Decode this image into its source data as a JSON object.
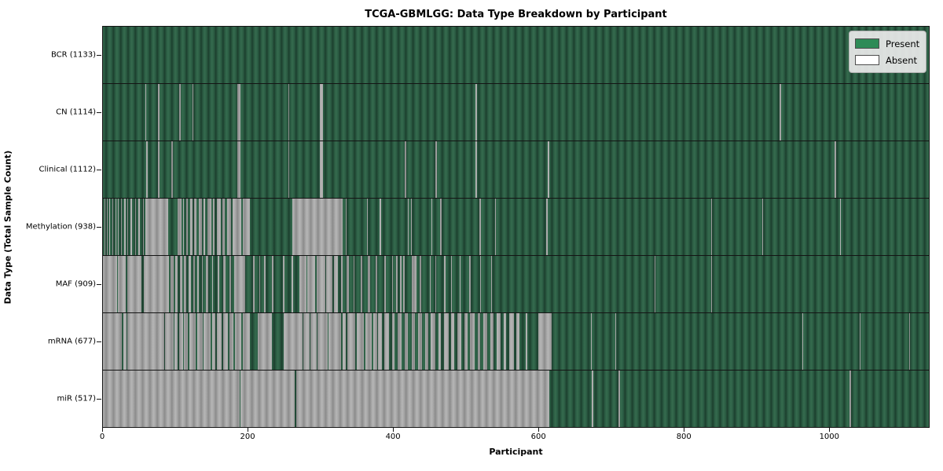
{
  "chart_data": {
    "type": "heatmap",
    "title": "TCGA-GBMLGG: Data Type Breakdown by Participant",
    "xlabel": "Participant",
    "ylabel": "Data Type (Total Sample Count)",
    "legend": [
      "Present",
      "Absent"
    ],
    "legend_position": "upper right",
    "colors": {
      "present": "#2e8b57",
      "absent": "#ffffff"
    },
    "n_participants": 1133,
    "x_ticks": [
      0,
      200,
      400,
      600,
      800,
      1000
    ],
    "x_axis_max": 1138,
    "rows": [
      {
        "data_type": "BCR",
        "sample_count": 1133,
        "label": "BCR (1133)",
        "absent_segments": []
      },
      {
        "data_type": "CN",
        "sample_count": 1114,
        "label": "CN (1114)",
        "absent_segments": [
          [
            58,
            60
          ],
          [
            76,
            78
          ],
          [
            105,
            107
          ],
          [
            123,
            125
          ],
          [
            185,
            189
          ],
          [
            255,
            257
          ],
          [
            299,
            303
          ],
          [
            513,
            515
          ],
          [
            932,
            934
          ]
        ]
      },
      {
        "data_type": "Clinical",
        "sample_count": 1112,
        "label": "Clinical (1112)",
        "absent_segments": [
          [
            60,
            62
          ],
          [
            76,
            78
          ],
          [
            94,
            96
          ],
          [
            185,
            189
          ],
          [
            255,
            257
          ],
          [
            299,
            303
          ],
          [
            416,
            418
          ],
          [
            458,
            460
          ],
          [
            513,
            515
          ],
          [
            613,
            615
          ],
          [
            1008,
            1010
          ]
        ]
      },
      {
        "data_type": "Methylation",
        "sample_count": 938,
        "label": "Methylation (938)",
        "absent_segments": [
          [
            2,
            3
          ],
          [
            5,
            6
          ],
          [
            9,
            10
          ],
          [
            13,
            14
          ],
          [
            17,
            18
          ],
          [
            21,
            22
          ],
          [
            25,
            26
          ],
          [
            29,
            31
          ],
          [
            34,
            35
          ],
          [
            38,
            40
          ],
          [
            44,
            45
          ],
          [
            49,
            51
          ],
          [
            55,
            56
          ],
          [
            59,
            90
          ],
          [
            103,
            108
          ],
          [
            110,
            112
          ],
          [
            115,
            117
          ],
          [
            120,
            123
          ],
          [
            126,
            129
          ],
          [
            132,
            136
          ],
          [
            139,
            141
          ],
          [
            144,
            149
          ],
          [
            152,
            154
          ],
          [
            157,
            162
          ],
          [
            165,
            168
          ],
          [
            171,
            176
          ],
          [
            179,
            191
          ],
          [
            193,
            202
          ],
          [
            261,
            330
          ],
          [
            335,
            336
          ],
          [
            364,
            365
          ],
          [
            381,
            383
          ],
          [
            420,
            421
          ],
          [
            424,
            425
          ],
          [
            453,
            454
          ],
          [
            465,
            467
          ],
          [
            519,
            521
          ],
          [
            540,
            541
          ],
          [
            611,
            613
          ],
          [
            838,
            839
          ],
          [
            908,
            910
          ],
          [
            1016,
            1017
          ]
        ]
      },
      {
        "data_type": "MAF",
        "sample_count": 909,
        "label": "MAF (909)",
        "absent_segments": [
          [
            0,
            19
          ],
          [
            21,
            31
          ],
          [
            34,
            53
          ],
          [
            56,
            91
          ],
          [
            93,
            98
          ],
          [
            100,
            103
          ],
          [
            106,
            109
          ],
          [
            112,
            115
          ],
          [
            118,
            121
          ],
          [
            124,
            127
          ],
          [
            130,
            132
          ],
          [
            136,
            138
          ],
          [
            142,
            145
          ],
          [
            150,
            152
          ],
          [
            158,
            160
          ],
          [
            166,
            169
          ],
          [
            174,
            176
          ],
          [
            181,
            196
          ],
          [
            207,
            209
          ],
          [
            215,
            217
          ],
          [
            222,
            224
          ],
          [
            233,
            235
          ],
          [
            248,
            250
          ],
          [
            260,
            262
          ],
          [
            271,
            280
          ],
          [
            282,
            292
          ],
          [
            294,
            306
          ],
          [
            308,
            316
          ],
          [
            318,
            324
          ],
          [
            328,
            330
          ],
          [
            336,
            339
          ],
          [
            345,
            347
          ],
          [
            355,
            357
          ],
          [
            365,
            368
          ],
          [
            376,
            378
          ],
          [
            388,
            390
          ],
          [
            398,
            400
          ],
          [
            404,
            406
          ],
          [
            409,
            411
          ],
          [
            414,
            416
          ],
          [
            425,
            432
          ],
          [
            436,
            438
          ],
          [
            450,
            451
          ],
          [
            458,
            459
          ],
          [
            470,
            472
          ],
          [
            480,
            481
          ],
          [
            492,
            493
          ],
          [
            505,
            507
          ],
          [
            520,
            521
          ],
          [
            535,
            536
          ],
          [
            760,
            761
          ],
          [
            838,
            839
          ]
        ]
      },
      {
        "data_type": "mRNA",
        "sample_count": 677,
        "label": "mRNA (677)",
        "absent_segments": [
          [
            0,
            26
          ],
          [
            28,
            32
          ],
          [
            34,
            84
          ],
          [
            86,
            97
          ],
          [
            99,
            103
          ],
          [
            105,
            110
          ],
          [
            112,
            117
          ],
          [
            119,
            128
          ],
          [
            130,
            137
          ],
          [
            139,
            148
          ],
          [
            150,
            155
          ],
          [
            157,
            164
          ],
          [
            166,
            172
          ],
          [
            174,
            180
          ],
          [
            182,
            191
          ],
          [
            193,
            202
          ],
          [
            213,
            233
          ],
          [
            249,
            275
          ],
          [
            276,
            285
          ],
          [
            286,
            295
          ],
          [
            296,
            310
          ],
          [
            311,
            320
          ],
          [
            321,
            328
          ],
          [
            330,
            335
          ],
          [
            337,
            348
          ],
          [
            350,
            360
          ],
          [
            362,
            370
          ],
          [
            372,
            378
          ],
          [
            379,
            384
          ],
          [
            388,
            394
          ],
          [
            398,
            402
          ],
          [
            406,
            412
          ],
          [
            416,
            420
          ],
          [
            425,
            430
          ],
          [
            434,
            440
          ],
          [
            444,
            448
          ],
          [
            452,
            458
          ],
          [
            462,
            466
          ],
          [
            470,
            476
          ],
          [
            480,
            484
          ],
          [
            488,
            494
          ],
          [
            498,
            502
          ],
          [
            506,
            512
          ],
          [
            516,
            520
          ],
          [
            524,
            530
          ],
          [
            534,
            538
          ],
          [
            542,
            548
          ],
          [
            552,
            556
          ],
          [
            560,
            566
          ],
          [
            570,
            574
          ],
          [
            583,
            585
          ],
          [
            600,
            618
          ],
          [
            672,
            673
          ],
          [
            706,
            707
          ],
          [
            964,
            965
          ],
          [
            1043,
            1044
          ],
          [
            1111,
            1112
          ]
        ]
      },
      {
        "data_type": "miR",
        "sample_count": 517,
        "label": "miR (517)",
        "absent_segments": [
          [
            0,
            188
          ],
          [
            190,
            264
          ],
          [
            266,
            615
          ],
          [
            674,
            676
          ],
          [
            710,
            712
          ],
          [
            1029,
            1031
          ]
        ]
      }
    ]
  }
}
